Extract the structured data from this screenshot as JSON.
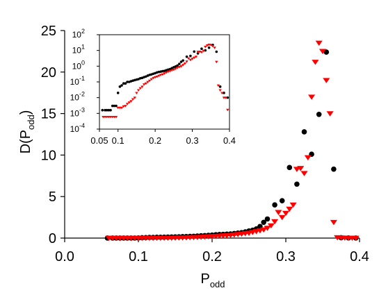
{
  "chart_data": [
    {
      "type": "scatter",
      "title": "",
      "xlabel": {
        "main": "P",
        "sub": "odd"
      },
      "ylabel": {
        "main": "D(P",
        "sub": "odd",
        "close": ")"
      },
      "xlim": [
        0.0,
        0.4
      ],
      "ylim": [
        0,
        25
      ],
      "x_ticks": [
        0.0,
        0.1,
        0.2,
        0.3,
        0.4
      ],
      "x_tick_labels": [
        "0.0",
        "0.1",
        "0.2",
        "0.3",
        "0.4"
      ],
      "y_ticks": [
        0,
        5,
        10,
        15,
        20,
        25
      ],
      "y_tick_labels": [
        "0",
        "5",
        "10",
        "15",
        "20",
        "25"
      ],
      "grid": false,
      "series": [
        {
          "marker": "circle",
          "color": "#000000",
          "x": [
            0.058,
            0.065,
            0.07,
            0.075,
            0.08,
            0.085,
            0.09,
            0.095,
            0.1,
            0.105,
            0.11,
            0.115,
            0.12,
            0.125,
            0.13,
            0.135,
            0.14,
            0.145,
            0.15,
            0.155,
            0.16,
            0.165,
            0.17,
            0.175,
            0.18,
            0.185,
            0.19,
            0.195,
            0.2,
            0.205,
            0.21,
            0.215,
            0.22,
            0.225,
            0.23,
            0.235,
            0.24,
            0.245,
            0.25,
            0.255,
            0.26,
            0.265,
            0.27,
            0.275,
            0.285,
            0.295,
            0.305,
            0.315,
            0.325,
            0.335,
            0.345,
            0.355,
            0.365,
            0.375,
            0.385,
            0.395
          ],
          "y": [
            0.0016,
            0.0016,
            0.0016,
            0.0016,
            0.0016,
            0.003,
            0.003,
            0.003,
            0.02,
            0.05,
            0.06,
            0.08,
            0.08,
            0.1,
            0.1,
            0.11,
            0.12,
            0.13,
            0.14,
            0.15,
            0.17,
            0.18,
            0.2,
            0.22,
            0.25,
            0.28,
            0.3,
            0.33,
            0.36,
            0.4,
            0.43,
            0.45,
            0.48,
            0.5,
            0.55,
            0.6,
            0.65,
            0.75,
            0.85,
            0.95,
            1.1,
            1.4,
            1.9,
            2.3,
            4.0,
            4.5,
            8.5,
            6.5,
            12.8,
            10.1,
            14.9,
            22.4,
            8.3,
            0.05,
            0.02,
            0.01
          ]
        },
        {
          "marker": "triangle-down",
          "color": "#ff0000",
          "x": [
            0.06,
            0.065,
            0.07,
            0.075,
            0.08,
            0.085,
            0.09,
            0.095,
            0.1,
            0.105,
            0.11,
            0.115,
            0.12,
            0.125,
            0.13,
            0.135,
            0.14,
            0.145,
            0.15,
            0.155,
            0.16,
            0.165,
            0.17,
            0.175,
            0.18,
            0.185,
            0.19,
            0.195,
            0.2,
            0.205,
            0.21,
            0.215,
            0.22,
            0.225,
            0.23,
            0.235,
            0.24,
            0.245,
            0.25,
            0.255,
            0.26,
            0.265,
            0.27,
            0.275,
            0.28,
            0.285,
            0.29,
            0.295,
            0.3,
            0.305,
            0.31,
            0.315,
            0.32,
            0.325,
            0.33,
            0.335,
            0.34,
            0.345,
            0.35,
            0.355,
            0.36,
            0.365,
            0.37,
            0.375,
            0.38,
            0.385,
            0.39,
            0.395
          ],
          "y": [
            0.0006,
            0.0006,
            0.0006,
            0.0006,
            0.0006,
            0.0006,
            0.0006,
            0.0006,
            0.0023,
            0.0023,
            0.0023,
            0.0028,
            0.003,
            0.004,
            0.005,
            0.006,
            0.008,
            0.01,
            0.02,
            0.03,
            0.04,
            0.05,
            0.07,
            0.08,
            0.1,
            0.12,
            0.15,
            0.18,
            0.2,
            0.22,
            0.25,
            0.28,
            0.3,
            0.35,
            0.4,
            0.45,
            0.5,
            0.55,
            0.6,
            0.7,
            0.8,
            0.9,
            1.0,
            1.2,
            1.5,
            2.0,
            3.1,
            2.5,
            3.0,
            3.5,
            4.0,
            8.3,
            8.4,
            7.8,
            9.7,
            17.0,
            21.2,
            23.5,
            22.5,
            19.0,
            15.0,
            1.9,
            0.06,
            0.03,
            0.02,
            0.01,
            0.01,
            0.0017
          ]
        }
      ]
    },
    {
      "type": "scatter",
      "title": "",
      "xlim": [
        0.05,
        0.4
      ],
      "ylim": [
        0.0001,
        100
      ],
      "y_scale": "log",
      "x_ticks": [
        0.05,
        0.1,
        0.2,
        0.3,
        0.4
      ],
      "x_tick_labels": [
        "0.05",
        "0.1",
        "0.2",
        "0.3",
        "0.4"
      ],
      "y_ticks": [
        0.0001,
        0.001,
        0.01,
        0.1,
        1,
        10,
        100
      ],
      "y_tick_labels": [
        {
          "base": "10",
          "exp": "-4"
        },
        {
          "base": "10",
          "exp": "-3"
        },
        {
          "base": "10",
          "exp": "-2"
        },
        {
          "base": "10",
          "exp": "-1"
        },
        {
          "base": "10",
          "exp": "0"
        },
        {
          "base": "10",
          "exp": "1"
        },
        {
          "base": "10",
          "exp": "2"
        }
      ],
      "grid": false
    }
  ]
}
